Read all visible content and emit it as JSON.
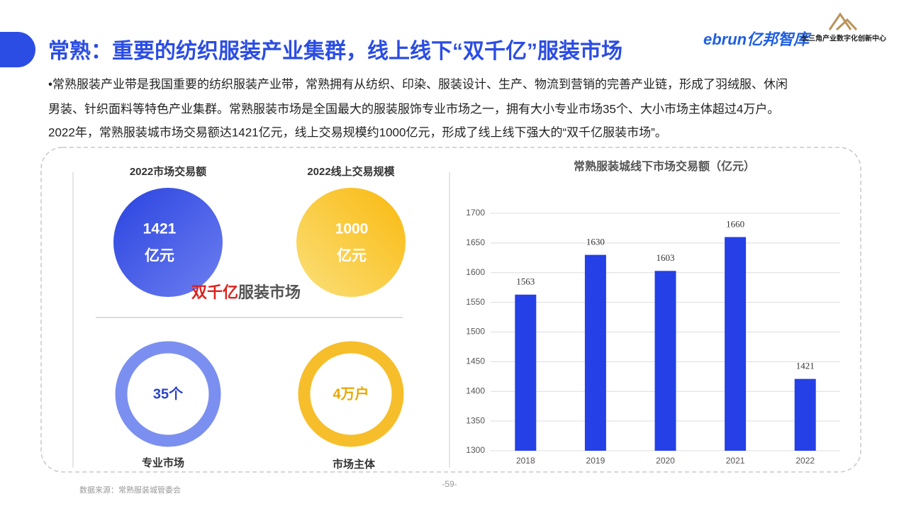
{
  "header": {
    "title": "常熟：重要的纺织服装产业集群，线上线下“双千亿”服装市场",
    "logo": "ebrun亿邦智库",
    "org": "长三角产业数字化创新中心"
  },
  "intro": [
    "•常熟服装产业带是我国重要的纺织服装产业带，常熟拥有从纺织、印染、服装设计、生产、物流到营销的完善产业链，形成了羽绒服、休闲",
    "男装、针织面料等特色产业集群。常熟服装市场是全国最大的服装服饰专业市场之一，拥有大小专业市场35个、大小市场主体超过4万户。",
    "2022年，常熟服装城市场交易额达1421亿元，线上交易规模约1000亿元，形成了线上线下强大的“双千亿服装市场”。"
  ],
  "stats": [
    {
      "label": "2022市场交易额",
      "value": "1421",
      "unit": "亿元"
    },
    {
      "label": "2022线上交易规模",
      "value": "1000",
      "unit": "亿元"
    }
  ],
  "slogan": {
    "strong": "双千亿",
    "rest": "服装市场"
  },
  "rings": [
    {
      "value": "35个",
      "label": "专业市场"
    },
    {
      "value": "4万户",
      "label": "市场主体"
    }
  ],
  "footer": {
    "source": "数据来源：常熟服装城管委会",
    "page": "-59-"
  },
  "chart_data": {
    "type": "bar",
    "title": "常熟服装城线下市场交易额（亿元）",
    "categories": [
      "2018",
      "2019",
      "2020",
      "2021",
      "2022"
    ],
    "values": [
      1563,
      1630,
      1603,
      1660,
      1421
    ],
    "color": "#2440e6",
    "ylim": [
      1300,
      1700
    ],
    "yticks": [
      1300,
      1350,
      1400,
      1450,
      1500,
      1550,
      1600,
      1650,
      1700
    ],
    "grid": true
  }
}
